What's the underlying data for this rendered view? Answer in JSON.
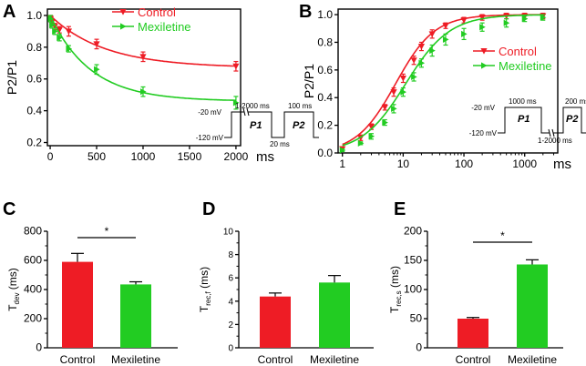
{
  "colors": {
    "control": "#ee1c25",
    "mexiletine": "#22cc22",
    "axis": "#000000"
  },
  "chart_data": [
    {
      "id": "A",
      "type": "line",
      "panel_label": "A",
      "ylabel": "P2/P1",
      "xunit": "ms",
      "xlim": [
        -30,
        2050
      ],
      "ylim": [
        0.18,
        1.04
      ],
      "xticks": [
        0,
        500,
        1000,
        1500,
        2000
      ],
      "yticks": [
        0.2,
        0.4,
        0.6,
        0.8,
        1.0
      ],
      "xtick_labels": [
        "0",
        "500",
        "1000",
        "1500",
        "2000"
      ],
      "ytick_labels": [
        "0.2",
        "0.4",
        "0.6",
        "0.8",
        "1.0"
      ],
      "legend": [
        "Control",
        "Mexiletine"
      ],
      "series": [
        {
          "name": "Control",
          "x": [
            5,
            20,
            50,
            100,
            200,
            500,
            1000,
            2000
          ],
          "y": [
            0.98,
            0.96,
            0.93,
            0.91,
            0.9,
            0.82,
            0.74,
            0.68
          ],
          "err": [
            0.02,
            0.02,
            0.02,
            0.02,
            0.03,
            0.03,
            0.03,
            0.03
          ],
          "fit": {
            "a": 0.67,
            "b": 0.33,
            "tau": 590
          }
        },
        {
          "name": "Mexiletine",
          "x": [
            5,
            20,
            50,
            100,
            200,
            500,
            1000,
            2000
          ],
          "y": [
            0.98,
            0.94,
            0.9,
            0.86,
            0.79,
            0.66,
            0.52,
            0.45
          ],
          "err": [
            0.02,
            0.02,
            0.02,
            0.02,
            0.02,
            0.03,
            0.03,
            0.04
          ],
          "fit": {
            "a": 0.46,
            "b": 0.54,
            "tau": 435
          }
        }
      ],
      "protocol": {
        "v_hold": "-120 mV",
        "v_step": "-20 mV",
        "p1_label": "P1",
        "p2_label": "P2",
        "p1_duration": "1-2000 ms",
        "p2_duration": "100 ms",
        "gap": "20 ms"
      }
    },
    {
      "id": "B",
      "type": "line",
      "panel_label": "B",
      "ylabel": "P2/P1",
      "xunit": "ms",
      "xscale": "log",
      "xlim": [
        0.85,
        3500
      ],
      "ylim": [
        0,
        1.04
      ],
      "xticks": [
        1,
        10,
        100,
        1000
      ],
      "yticks": [
        0,
        0.2,
        0.4,
        0.6,
        0.8,
        1.0
      ],
      "xtick_labels": [
        "1",
        "10",
        "100",
        "1000"
      ],
      "ytick_labels": [
        "0.0",
        "0.2",
        "0.4",
        "0.6",
        "0.8",
        "1.0"
      ],
      "legend": [
        "Control",
        "Mexiletine"
      ],
      "series": [
        {
          "name": "Control",
          "x": [
            1,
            2,
            3,
            5,
            7,
            10,
            15,
            20,
            30,
            50,
            100,
            200,
            500,
            1000,
            2000
          ],
          "y": [
            0.03,
            0.11,
            0.19,
            0.33,
            0.44,
            0.54,
            0.67,
            0.77,
            0.86,
            0.92,
            0.96,
            0.98,
            0.99,
            0.99,
            0.99
          ],
          "err": [
            0.01,
            0.02,
            0.02,
            0.02,
            0.03,
            0.03,
            0.03,
            0.03,
            0.03,
            0.02,
            0.02,
            0.02,
            0.02,
            0.02,
            0.02
          ],
          "fit": {
            "t50": 7.5,
            "hill": 1.35
          }
        },
        {
          "name": "Mexiletine",
          "x": [
            1,
            2,
            3,
            5,
            7,
            10,
            15,
            20,
            30,
            50,
            100,
            200,
            500,
            1000,
            2000
          ],
          "y": [
            0.02,
            0.07,
            0.12,
            0.22,
            0.32,
            0.44,
            0.55,
            0.65,
            0.74,
            0.82,
            0.86,
            0.91,
            0.94,
            0.97,
            0.98
          ],
          "err": [
            0.01,
            0.01,
            0.02,
            0.02,
            0.03,
            0.03,
            0.03,
            0.03,
            0.04,
            0.04,
            0.04,
            0.03,
            0.03,
            0.02,
            0.02
          ],
          "fit": {
            "t50": 11,
            "hill": 1.2
          }
        }
      ],
      "protocol": {
        "v_hold": "-120 mV",
        "v_step": "-20 mV",
        "p1_label": "P1",
        "p2_label": "P2",
        "p1_duration": "1000 ms",
        "p2_duration": "200 ms",
        "gap": "1-2000 ms"
      }
    },
    {
      "id": "C",
      "type": "bar",
      "panel_label": "C",
      "ylabel_main": "T",
      "ylabel_sub": "dev",
      "ylabel_unit": " (ms)",
      "categories": [
        "Control",
        "Mexiletine"
      ],
      "values": [
        590,
        435
      ],
      "errors": [
        58,
        18
      ],
      "ylim": [
        0,
        800
      ],
      "yticks": [
        0,
        200,
        400,
        600,
        800
      ],
      "ytick_labels": [
        "0",
        "200",
        "400",
        "600",
        "800"
      ],
      "significance": "*"
    },
    {
      "id": "D",
      "type": "bar",
      "panel_label": "D",
      "ylabel_main": "T",
      "ylabel_sub": "rec,f",
      "ylabel_unit": " (ms)",
      "categories": [
        "Control",
        "Mexiletine"
      ],
      "values": [
        4.4,
        5.6
      ],
      "errors": [
        0.3,
        0.6
      ],
      "ylim": [
        0,
        10
      ],
      "yticks": [
        0,
        2,
        4,
        6,
        8,
        10
      ],
      "ytick_labels": [
        "0",
        "2",
        "4",
        "6",
        "8",
        "10"
      ],
      "significance": ""
    },
    {
      "id": "E",
      "type": "bar",
      "panel_label": "E",
      "ylabel_main": "T",
      "ylabel_sub": "rec,s",
      "ylabel_unit": " (ms)",
      "categories": [
        "Control",
        "Mexiletine"
      ],
      "values": [
        50,
        143
      ],
      "errors": [
        2,
        8
      ],
      "ylim": [
        0,
        200
      ],
      "yticks": [
        0,
        50,
        100,
        150,
        200
      ],
      "ytick_labels": [
        "0",
        "50",
        "100",
        "150",
        "200"
      ],
      "significance": "*"
    }
  ]
}
